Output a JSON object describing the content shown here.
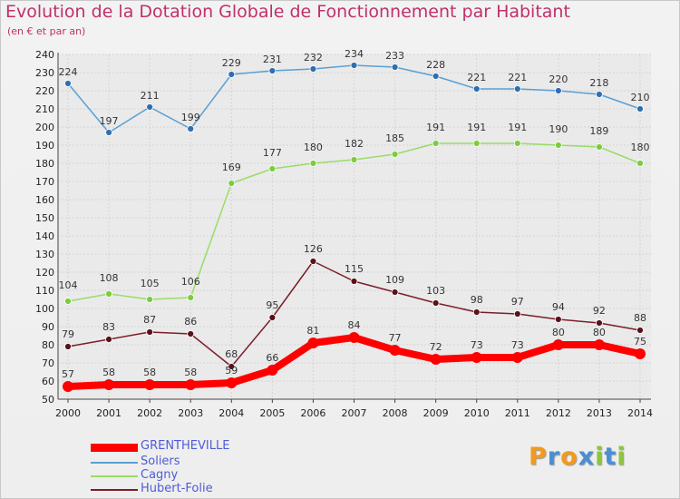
{
  "title": "Evolution de la Dotation Globale de Fonctionnement par Habitant",
  "subtitle": "(en € et par an)",
  "logo": {
    "letters": [
      "P",
      "r",
      "o",
      "x",
      "i",
      "t",
      "i"
    ],
    "colors": [
      "#f39a1e",
      "#4a8fd4",
      "#f39a1e",
      "#4a8fd4",
      "#8cc63f",
      "#4a8fd4",
      "#8cc63f"
    ]
  },
  "chart_data": {
    "type": "line",
    "title": "Evolution de la Dotation Globale de Fonctionnement par Habitant",
    "subtitle": "(en € et par an)",
    "xlabel": "",
    "ylabel": "",
    "x": [
      "2000",
      "2001",
      "2002",
      "2003",
      "2004",
      "2005",
      "2006",
      "2007",
      "2008",
      "2009",
      "2010",
      "2011",
      "2012",
      "2013",
      "2014"
    ],
    "ylim": [
      50,
      240
    ],
    "yticks": [
      50,
      60,
      70,
      80,
      90,
      100,
      110,
      120,
      130,
      140,
      150,
      160,
      170,
      180,
      190,
      200,
      210,
      220,
      230,
      240
    ],
    "grid": true,
    "legend_position": "bottom-left",
    "series": [
      {
        "name": "Soliers",
        "color": "#5a9fd4",
        "marker": "#2f6fb0",
        "values": [
          224,
          197,
          211,
          199,
          229,
          231,
          232,
          234,
          233,
          228,
          221,
          221,
          220,
          218,
          210
        ]
      },
      {
        "name": "Cagny",
        "color": "#98dd66",
        "marker": "#7ccc3c",
        "values": [
          104,
          108,
          105,
          106,
          169,
          177,
          180,
          182,
          185,
          191,
          191,
          191,
          190,
          189,
          180
        ]
      },
      {
        "name": "Hubert-Folie",
        "color": "#7a1e2a",
        "marker": "#5a1118",
        "values": [
          79,
          83,
          87,
          86,
          68,
          95,
          126,
          115,
          109,
          103,
          98,
          97,
          94,
          92,
          88
        ]
      },
      {
        "name": "GRENTHEVILLE",
        "color": "#ff0000",
        "marker": "#ff0000",
        "values": [
          57,
          58,
          58,
          58,
          59,
          66,
          81,
          84,
          77,
          72,
          73,
          73,
          80,
          80,
          75
        ]
      }
    ],
    "legend_order": [
      "GRENTHEVILLE",
      "Soliers",
      "Cagny",
      "Hubert-Folie"
    ]
  }
}
